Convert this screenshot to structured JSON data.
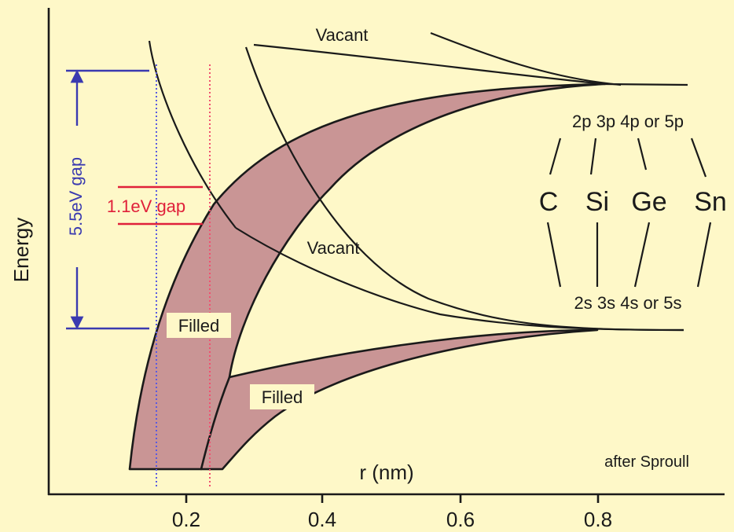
{
  "axes": {
    "y_label": "Energy",
    "x_label": "r (nm)",
    "x_ticks": [
      "0.2",
      "0.4",
      "0.6",
      "0.8"
    ]
  },
  "labels": {
    "vacant_top": "Vacant",
    "vacant_mid": "Vacant",
    "filled_upper": "Filled",
    "filled_lower": "Filled",
    "gap_large": "5.5eV gap",
    "gap_small": "1.1eV gap",
    "credit": "after Sproull"
  },
  "orbitals": {
    "p_levels": "2p 3p 4p or 5p",
    "s_levels": "2s 3s 4s or 5s",
    "elements": [
      "C",
      "Si",
      "Ge",
      "Sn"
    ]
  },
  "colors": {
    "background": "#fef8c8",
    "band_fill": "#c99595",
    "gap_large": "#3a3ab0",
    "gap_small": "#e0203a"
  }
}
